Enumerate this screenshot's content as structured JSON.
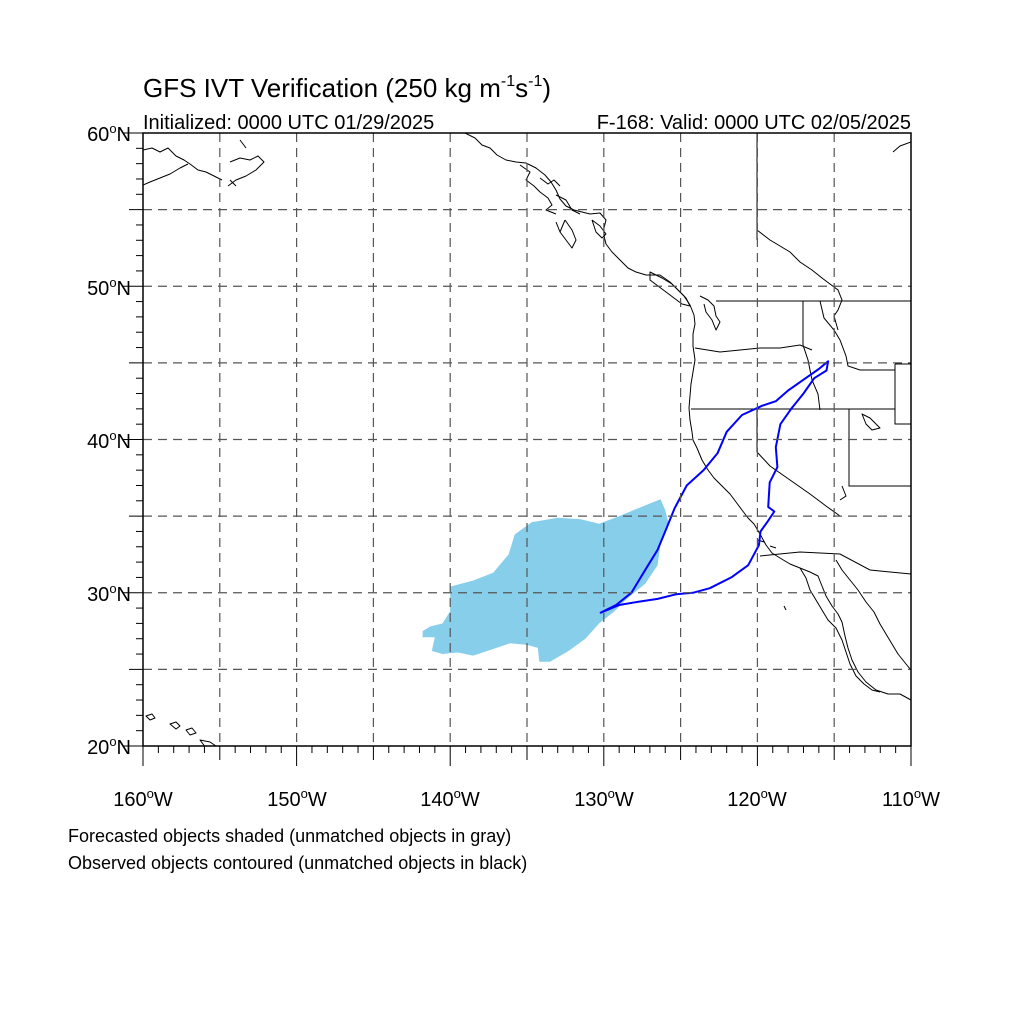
{
  "title": {
    "main": "GFS IVT Verification (250 kg m",
    "exp1": "-1",
    "mid": "s",
    "exp2": "-1",
    "close": ")"
  },
  "subtitle_left": "Initialized: 0000 UTC 01/29/2025",
  "subtitle_right": "F-168: Valid: 0000 UTC 02/05/2025",
  "lon_labels": [
    {
      "deg": "160",
      "hemi": "W"
    },
    {
      "deg": "150",
      "hemi": "W"
    },
    {
      "deg": "140",
      "hemi": "W"
    },
    {
      "deg": "130",
      "hemi": "W"
    },
    {
      "deg": "120",
      "hemi": "W"
    },
    {
      "deg": "110",
      "hemi": "W"
    }
  ],
  "lat_labels": [
    {
      "deg": "60",
      "hemi": "N"
    },
    {
      "deg": "50",
      "hemi": "N"
    },
    {
      "deg": "40",
      "hemi": "N"
    },
    {
      "deg": "30",
      "hemi": "N"
    },
    {
      "deg": "20",
      "hemi": "N"
    }
  ],
  "footnotes": {
    "line1": "Forecasted objects shaded (unmatched objects in gray)",
    "line2": "Observed objects contoured (unmatched objects in black)"
  },
  "colors": {
    "forecast_fill": "#87ceeb",
    "observed_contour": "#0000ff",
    "land_outline": "#000000",
    "grid": "#555555"
  },
  "map": {
    "lon_range": [
      -160,
      -110
    ],
    "lat_range": [
      20,
      60
    ]
  },
  "forecast_object": {
    "color": "#87ceeb",
    "polygon": [
      [
        -141.8,
        27.5
      ],
      [
        -141.3,
        27.8
      ],
      [
        -140.5,
        28.0
      ],
      [
        -140.0,
        28.8
      ],
      [
        -140.0,
        30.4
      ],
      [
        -138.5,
        30.8
      ],
      [
        -137.2,
        31.3
      ],
      [
        -136.2,
        32.5
      ],
      [
        -135.8,
        33.8
      ],
      [
        -134.7,
        34.6
      ],
      [
        -133.0,
        34.9
      ],
      [
        -131.5,
        34.8
      ],
      [
        -130.3,
        34.5
      ],
      [
        -129.0,
        35.0
      ],
      [
        -127.8,
        35.5
      ],
      [
        -126.8,
        35.9
      ],
      [
        -126.3,
        36.1
      ],
      [
        -126.0,
        35.4
      ],
      [
        -125.8,
        34.6
      ],
      [
        -126.3,
        33.2
      ],
      [
        -126.5,
        31.8
      ],
      [
        -127.3,
        30.6
      ],
      [
        -128.5,
        29.6
      ],
      [
        -129.3,
        28.8
      ],
      [
        -130.3,
        28.0
      ],
      [
        -131.2,
        27.0
      ],
      [
        -132.3,
        26.2
      ],
      [
        -133.5,
        25.5
      ],
      [
        -134.2,
        25.5
      ],
      [
        -134.3,
        26.4
      ],
      [
        -135.0,
        26.6
      ],
      [
        -136.1,
        26.7
      ],
      [
        -137.3,
        26.3
      ],
      [
        -138.5,
        25.9
      ],
      [
        -139.5,
        26.1
      ],
      [
        -140.5,
        26.0
      ],
      [
        -141.2,
        26.2
      ],
      [
        -141.0,
        27.1
      ],
      [
        -141.8,
        27.1
      ]
    ]
  },
  "observed_object": {
    "color": "#0000ff",
    "polygon": [
      [
        -130.2,
        28.7
      ],
      [
        -129.2,
        29.2
      ],
      [
        -128.2,
        30.0
      ],
      [
        -127.3,
        31.5
      ],
      [
        -126.5,
        32.8
      ],
      [
        -126.0,
        34.0
      ],
      [
        -125.4,
        35.5
      ],
      [
        -124.6,
        37.0
      ],
      [
        -123.5,
        38.0
      ],
      [
        -122.6,
        39.1
      ],
      [
        -122.0,
        40.5
      ],
      [
        -121.0,
        41.6
      ],
      [
        -119.7,
        42.2
      ],
      [
        -118.8,
        42.5
      ],
      [
        -118.0,
        43.2
      ],
      [
        -117.0,
        43.9
      ],
      [
        -116.0,
        44.6
      ],
      [
        -115.4,
        45.1
      ],
      [
        -115.5,
        44.5
      ],
      [
        -116.3,
        44.0
      ],
      [
        -117.0,
        43.0
      ],
      [
        -117.8,
        42.0
      ],
      [
        -118.5,
        41.0
      ],
      [
        -118.8,
        39.5
      ],
      [
        -118.7,
        38.2
      ],
      [
        -119.2,
        37.2
      ],
      [
        -119.3,
        35.6
      ],
      [
        -118.9,
        35.3
      ],
      [
        -119.3,
        34.7
      ],
      [
        -119.8,
        34.0
      ],
      [
        -119.9,
        33.1
      ],
      [
        -120.6,
        31.8
      ],
      [
        -121.7,
        31.0
      ],
      [
        -123.1,
        30.3
      ],
      [
        -124.2,
        30.0
      ],
      [
        -125.3,
        29.9
      ],
      [
        -126.5,
        29.6
      ],
      [
        -127.8,
        29.4
      ],
      [
        -129.0,
        29.2
      ],
      [
        -130.2,
        28.7
      ]
    ]
  }
}
